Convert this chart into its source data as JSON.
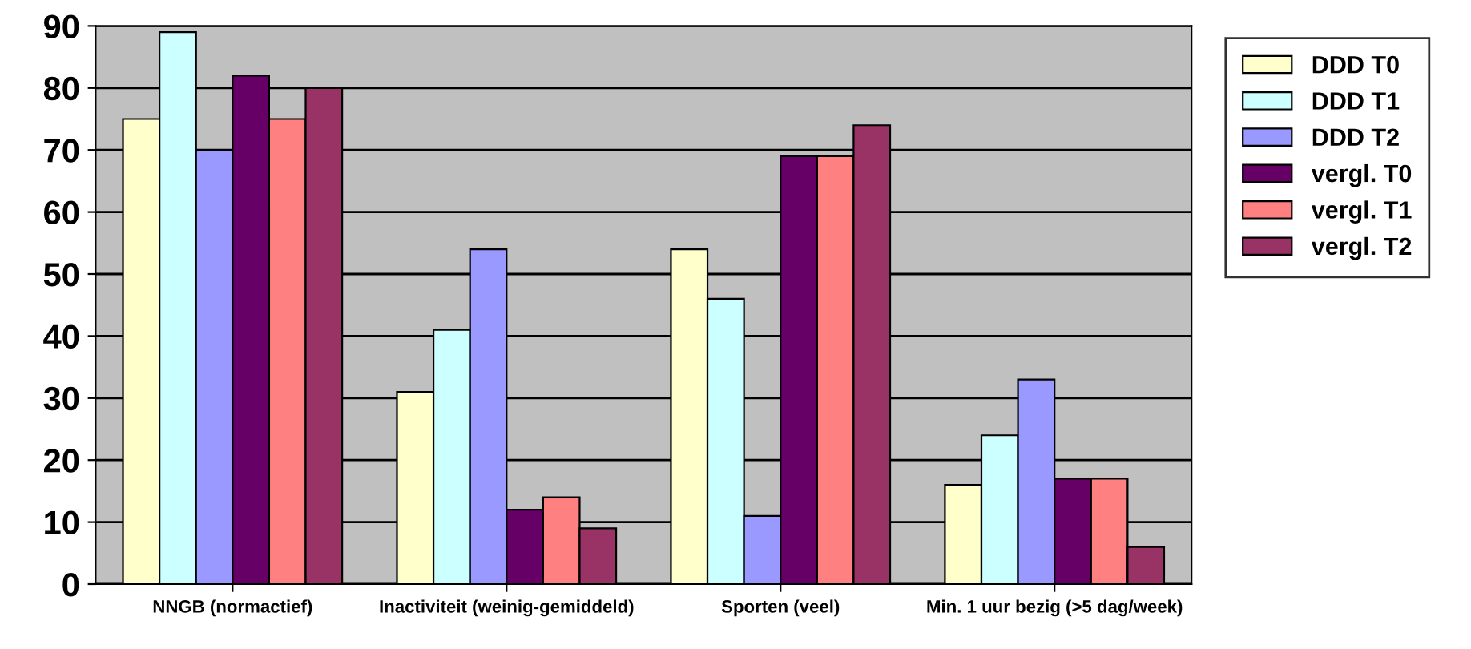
{
  "chart_data": {
    "type": "bar",
    "categories": [
      "NNGB (normactief)",
      "Inactiviteit (weinig-gemiddeld)",
      "Sporten (veel)",
      "Min. 1 uur bezig (>5 dag/week)"
    ],
    "series": [
      {
        "name": "DDD T0",
        "color": "#ffffcc",
        "values": [
          75,
          31,
          54,
          16
        ]
      },
      {
        "name": "DDD T1",
        "color": "#ccffff",
        "values": [
          89,
          41,
          46,
          24
        ]
      },
      {
        "name": "DDD T2",
        "color": "#9999ff",
        "values": [
          70,
          54,
          11,
          33
        ]
      },
      {
        "name": "vergl. T0",
        "color": "#660066",
        "values": [
          82,
          12,
          69,
          17
        ]
      },
      {
        "name": "vergl. T1",
        "color": "#ff8080",
        "values": [
          75,
          14,
          69,
          17
        ]
      },
      {
        "name": "vergl. T2",
        "color": "#993366",
        "values": [
          80,
          9,
          74,
          6
        ]
      }
    ],
    "ylim": [
      0,
      90
    ],
    "yticks": [
      0,
      10,
      20,
      30,
      40,
      50,
      60,
      70,
      80,
      90
    ],
    "grid": "y",
    "legend": "right"
  }
}
